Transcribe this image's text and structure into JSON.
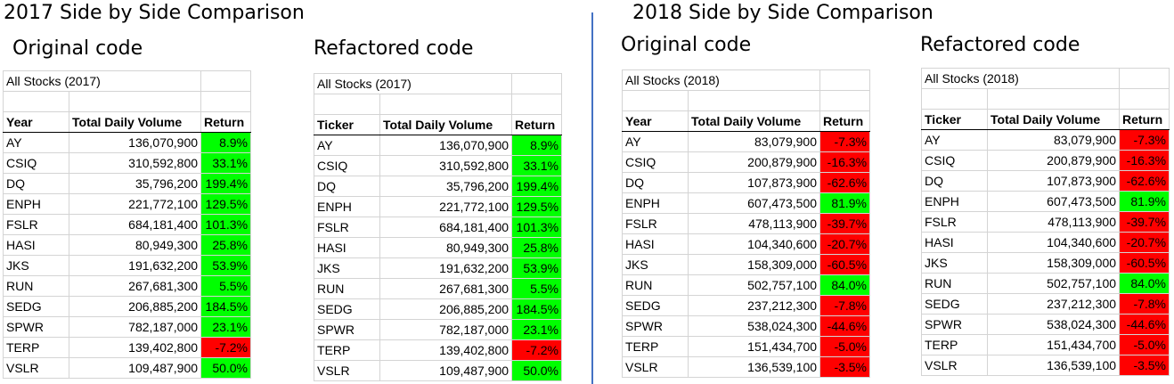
{
  "headings": {
    "left": "2017 Side by Side Comparison",
    "right": "2018 Side by Side Comparison"
  },
  "colors": {
    "positive": "#00ff00",
    "negative": "#ff0000",
    "divider": "#4472c4"
  },
  "tables": [
    {
      "label": "Original code",
      "title": "All Stocks (2017)",
      "headers": [
        "Year",
        "Total Daily Volume",
        "Return"
      ],
      "rows": [
        [
          "AY",
          "136,070,900",
          "8.9%"
        ],
        [
          "CSIQ",
          "310,592,800",
          "33.1%"
        ],
        [
          "DQ",
          "35,796,200",
          "199.4%"
        ],
        [
          "ENPH",
          "221,772,100",
          "129.5%"
        ],
        [
          "FSLR",
          "684,181,400",
          "101.3%"
        ],
        [
          "HASI",
          "80,949,300",
          "25.8%"
        ],
        [
          "JKS",
          "191,632,200",
          "53.9%"
        ],
        [
          "RUN",
          "267,681,300",
          "5.5%"
        ],
        [
          "SEDG",
          "206,885,200",
          "184.5%"
        ],
        [
          "SPWR",
          "782,187,000",
          "23.1%"
        ],
        [
          "TERP",
          "139,402,800",
          "-7.2%"
        ],
        [
          "VSLR",
          "109,487,900",
          "50.0%"
        ]
      ]
    },
    {
      "label": "Refactored code",
      "title": "All Stocks (2017)",
      "headers": [
        "Ticker",
        "Total Daily Volume",
        "Return"
      ],
      "rows": [
        [
          "AY",
          "136,070,900",
          "8.9%"
        ],
        [
          "CSIQ",
          "310,592,800",
          "33.1%"
        ],
        [
          "DQ",
          "35,796,200",
          "199.4%"
        ],
        [
          "ENPH",
          "221,772,100",
          "129.5%"
        ],
        [
          "FSLR",
          "684,181,400",
          "101.3%"
        ],
        [
          "HASI",
          "80,949,300",
          "25.8%"
        ],
        [
          "JKS",
          "191,632,200",
          "53.9%"
        ],
        [
          "RUN",
          "267,681,300",
          "5.5%"
        ],
        [
          "SEDG",
          "206,885,200",
          "184.5%"
        ],
        [
          "SPWR",
          "782,187,000",
          "23.1%"
        ],
        [
          "TERP",
          "139,402,800",
          "-7.2%"
        ],
        [
          "VSLR",
          "109,487,900",
          "50.0%"
        ]
      ]
    },
    {
      "label": "Original code",
      "title": "All Stocks (2018)",
      "headers": [
        "Year",
        "Total Daily Volume",
        "Return"
      ],
      "rows": [
        [
          "AY",
          "83,079,900",
          "-7.3%"
        ],
        [
          "CSIQ",
          "200,879,900",
          "-16.3%"
        ],
        [
          "DQ",
          "107,873,900",
          "-62.6%"
        ],
        [
          "ENPH",
          "607,473,500",
          "81.9%"
        ],
        [
          "FSLR",
          "478,113,900",
          "-39.7%"
        ],
        [
          "HASI",
          "104,340,600",
          "-20.7%"
        ],
        [
          "JKS",
          "158,309,000",
          "-60.5%"
        ],
        [
          "RUN",
          "502,757,100",
          "84.0%"
        ],
        [
          "SEDG",
          "237,212,300",
          "-7.8%"
        ],
        [
          "SPWR",
          "538,024,300",
          "-44.6%"
        ],
        [
          "TERP",
          "151,434,700",
          "-5.0%"
        ],
        [
          "VSLR",
          "136,539,100",
          "-3.5%"
        ]
      ]
    },
    {
      "label": "Refactored code",
      "title": "All Stocks (2018)",
      "headers": [
        "Ticker",
        "Total Daily Volume",
        "Return"
      ],
      "rows": [
        [
          "AY",
          "83,079,900",
          "-7.3%"
        ],
        [
          "CSIQ",
          "200,879,900",
          "-16.3%"
        ],
        [
          "DQ",
          "107,873,900",
          "-62.6%"
        ],
        [
          "ENPH",
          "607,473,500",
          "81.9%"
        ],
        [
          "FSLR",
          "478,113,900",
          "-39.7%"
        ],
        [
          "HASI",
          "104,340,600",
          "-20.7%"
        ],
        [
          "JKS",
          "158,309,000",
          "-60.5%"
        ],
        [
          "RUN",
          "502,757,100",
          "84.0%"
        ],
        [
          "SEDG",
          "237,212,300",
          "-7.8%"
        ],
        [
          "SPWR",
          "538,024,300",
          "-44.6%"
        ],
        [
          "TERP",
          "151,434,700",
          "-5.0%"
        ],
        [
          "VSLR",
          "136,539,100",
          "-3.5%"
        ]
      ]
    }
  ]
}
